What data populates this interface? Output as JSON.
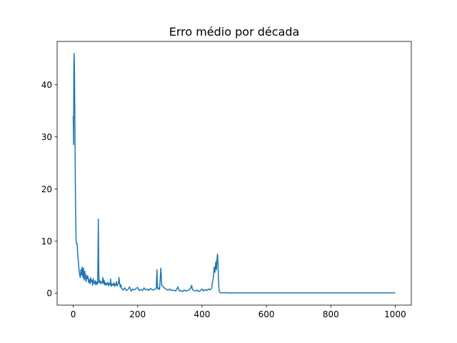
{
  "chart_data": {
    "type": "line",
    "title": "Erro médio por década",
    "xlabel": "",
    "ylabel": "",
    "xlim": [
      -50,
      1050
    ],
    "ylim": [
      -2.3,
      48.3
    ],
    "xticks": [
      0,
      200,
      400,
      600,
      800,
      1000
    ],
    "yticks": [
      0,
      10,
      20,
      30,
      40
    ],
    "grid": false,
    "legend": "none",
    "series": [
      {
        "color": "#1f77b4",
        "x": [
          0,
          1,
          2,
          3,
          4,
          5,
          6,
          7,
          8,
          9,
          10,
          12,
          14,
          16,
          18,
          20,
          22,
          24,
          26,
          28,
          30,
          32,
          34,
          36,
          38,
          40,
          42,
          44,
          46,
          48,
          50,
          52,
          54,
          56,
          58,
          60,
          62,
          64,
          66,
          68,
          70,
          72,
          74,
          76,
          77,
          78,
          79,
          80,
          82,
          84,
          86,
          88,
          90,
          92,
          94,
          96,
          98,
          100,
          102,
          104,
          106,
          108,
          110,
          112,
          114,
          116,
          118,
          120,
          122,
          124,
          126,
          128,
          130,
          132,
          134,
          136,
          138,
          140,
          142,
          144,
          146,
          148,
          150,
          155,
          160,
          165,
          170,
          175,
          180,
          185,
          190,
          195,
          200,
          205,
          210,
          215,
          220,
          225,
          230,
          235,
          240,
          245,
          250,
          255,
          258,
          260,
          262,
          265,
          268,
          270,
          272,
          275,
          280,
          285,
          290,
          295,
          300,
          305,
          310,
          315,
          318,
          320,
          325,
          330,
          335,
          340,
          345,
          350,
          355,
          360,
          362,
          365,
          368,
          370,
          375,
          380,
          385,
          390,
          395,
          400,
          405,
          410,
          415,
          420,
          425,
          430,
          432,
          434,
          436,
          438,
          440,
          442,
          443,
          444,
          445,
          446,
          447,
          448,
          449,
          450,
          451,
          452,
          453,
          454,
          455,
          456,
          458,
          460,
          470,
          480,
          500,
          550,
          600,
          650,
          700,
          750,
          800,
          850,
          900,
          950,
          1000
        ],
        "y": [
          34,
          28.5,
          44,
          46,
          42,
          34,
          26,
          18,
          13,
          10,
          9.5,
          9.5,
          7.5,
          6,
          4.5,
          3.5,
          3.0,
          4.5,
          3.5,
          5.0,
          3.0,
          4.8,
          2.5,
          4.2,
          3.0,
          2.2,
          3.5,
          2.8,
          3.2,
          2.0,
          2.6,
          1.8,
          3.0,
          2.2,
          2.5,
          1.5,
          2.8,
          2.0,
          1.8,
          2.4,
          1.6,
          2.2,
          1.7,
          1.9,
          8.0,
          14.2,
          6.0,
          2.0,
          2.5,
          2.0,
          1.8,
          2.2,
          2.0,
          3.0,
          1.8,
          2.5,
          1.6,
          2.0,
          1.5,
          1.9,
          1.7,
          2.1,
          1.4,
          1.8,
          1.6,
          2.7,
          1.3,
          1.8,
          1.5,
          1.6,
          2.0,
          1.3,
          1.7,
          1.5,
          2.2,
          1.4,
          1.6,
          1.8,
          3.0,
          1.9,
          1.2,
          1.6,
          0.9,
          0.6,
          1.0,
          0.5,
          0.7,
          1.2,
          0.4,
          0.8,
          0.6,
          0.9,
          1.1,
          0.5,
          0.7,
          0.5,
          1.0,
          0.6,
          0.8,
          0.5,
          0.9,
          0.7,
          0.6,
          0.8,
          1.0,
          4.5,
          0.8,
          1.0,
          0.7,
          2.5,
          4.8,
          1.5,
          1.2,
          0.9,
          0.7,
          0.6,
          0.8,
          0.5,
          0.6,
          0.5,
          0.4,
          0.6,
          1.2,
          0.4,
          0.5,
          0.3,
          0.6,
          0.4,
          0.5,
          0.6,
          0.8,
          1.0,
          1.5,
          0.7,
          0.5,
          0.4,
          0.6,
          0.3,
          0.5,
          0.8,
          0.4,
          0.7,
          0.5,
          0.8,
          0.6,
          1.0,
          2.0,
          2.5,
          3.5,
          5.0,
          4.0,
          5.5,
          6.0,
          5.0,
          4.5,
          6.0,
          7.0,
          7.5,
          6.5,
          5.0,
          3.0,
          1.5,
          0.6,
          0.3,
          0.2,
          0.1,
          0.05,
          0.05,
          0.1,
          0.05,
          0.05,
          0.05,
          0.05,
          0.05,
          0.05,
          0.05,
          0.05,
          0.05,
          0.05,
          0.05,
          0.05
        ]
      }
    ]
  }
}
